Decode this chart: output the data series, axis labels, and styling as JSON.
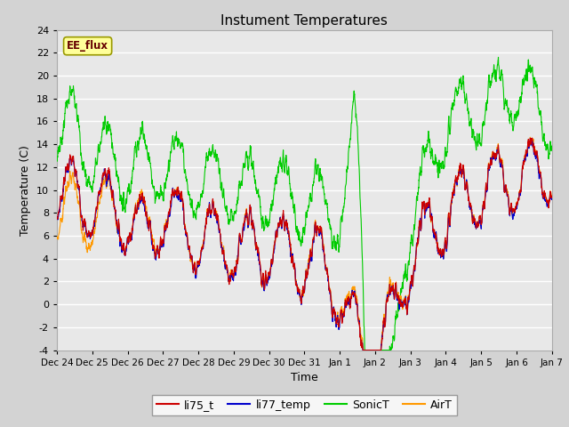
{
  "title": "Instument Temperatures",
  "ylabel": "Temperature (C)",
  "xlabel": "Time",
  "annotation": "EE_flux",
  "ylim": [
    -4,
    24
  ],
  "yticks": [
    -4,
    -2,
    0,
    2,
    4,
    6,
    8,
    10,
    12,
    14,
    16,
    18,
    20,
    22,
    24
  ],
  "xtick_labels": [
    "Dec 24",
    "Dec 25",
    "Dec 26",
    "Dec 27",
    "Dec 28",
    "Dec 29",
    "Dec 30",
    "Dec 31",
    "Jan 1",
    "Jan 2",
    "Jan 3",
    "Jan 4",
    "Jan 5",
    "Jan 6",
    "Jan 7"
  ],
  "colors": {
    "li75_t": "#cc0000",
    "li77_temp": "#0000cc",
    "SonicT": "#00cc00",
    "AirT": "#ff9900"
  },
  "fig_bg": "#d3d3d3",
  "plot_bg": "#e8e8e8",
  "grid_color": "#ffffff",
  "annotation_bg": "#ffff99",
  "annotation_border": "#999900",
  "annotation_text_color": "#660000"
}
